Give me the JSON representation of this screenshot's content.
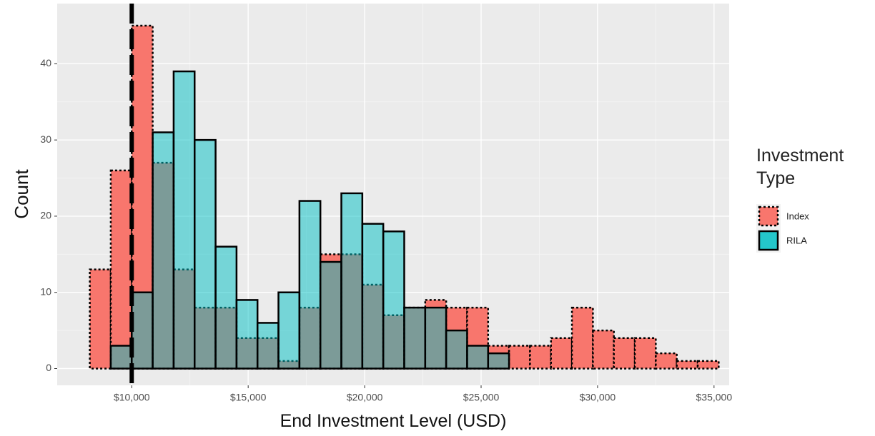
{
  "chart_data": {
    "type": "histogram",
    "x_label": "End Investment Level (USD)",
    "y_label": "Count",
    "legend_title": "Investment Type",
    "legend_position": "right",
    "grid": true,
    "bins": [
      8200,
      9100,
      10000,
      10900,
      11800,
      12700,
      13600,
      14500,
      15400,
      16300,
      17200,
      18100,
      19000,
      19900,
      20800,
      21700,
      22600,
      23500,
      24400,
      25300,
      26200,
      27100,
      28000,
      28900,
      29800,
      30700,
      31600,
      32500,
      33400,
      34300,
      35200
    ],
    "series": [
      {
        "name": "Index",
        "color": "#F8766D",
        "opacity": 1,
        "border": "dotted",
        "values": [
          13,
          26,
          45,
          27,
          13,
          8,
          8,
          4,
          4,
          1,
          8,
          15,
          15,
          11,
          7,
          8,
          9,
          8,
          8,
          3,
          3,
          3,
          4,
          8,
          5,
          4,
          4,
          2,
          1,
          1
        ]
      },
      {
        "name": "RILA",
        "color": "#00BFC4",
        "opacity": 0.5,
        "border": "solid",
        "values": [
          0,
          3,
          10,
          31,
          39,
          30,
          16,
          9,
          6,
          10,
          22,
          14,
          23,
          19,
          18,
          8,
          8,
          5,
          3,
          2,
          0,
          0,
          0,
          0,
          0,
          0,
          0,
          0,
          0,
          0
        ]
      }
    ],
    "vline": 10000,
    "xlim": [
      6800,
      35650
    ],
    "ylim": [
      -2.2,
      47.9
    ],
    "xticks": [
      {
        "value": 10000,
        "label": "$10,000"
      },
      {
        "value": 15000,
        "label": "$15,000"
      },
      {
        "value": 20000,
        "label": "$20,000"
      },
      {
        "value": 25000,
        "label": "$25,000"
      },
      {
        "value": 30000,
        "label": "$30,000"
      },
      {
        "value": 35000,
        "label": "$35,000"
      }
    ],
    "yticks": [
      0,
      10,
      20,
      30,
      40
    ]
  }
}
